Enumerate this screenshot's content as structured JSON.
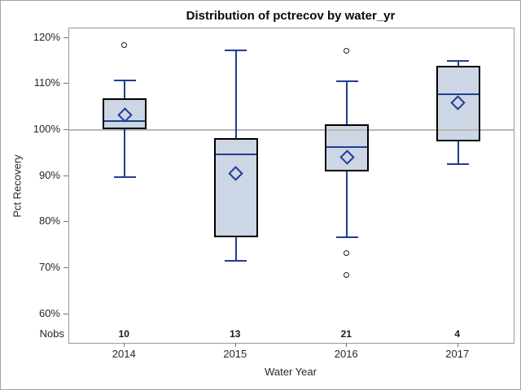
{
  "chart_data": {
    "type": "boxplot",
    "title": "Distribution of pctrecov by water_yr",
    "xlabel": "Water Year",
    "ylabel": "Pct Recovery",
    "categories": [
      "2014",
      "2015",
      "2016",
      "2017"
    ],
    "yticks": [
      120,
      110,
      100,
      90,
      80,
      70,
      60
    ],
    "ytick_labels": [
      "120%",
      "110%",
      "100%",
      "90%",
      "80%",
      "70%",
      "60%"
    ],
    "ylim": [
      57,
      122
    ],
    "grid": "off",
    "legend": "none",
    "reference_line": 100,
    "nobs_label": "Nobs",
    "nobs": [
      "10",
      "13",
      "21",
      "4"
    ],
    "series": [
      {
        "category": "2014",
        "n": 10,
        "whisker_low": 89.8,
        "q1": 100.2,
        "median": 102.0,
        "mean": 103.3,
        "q3": 106.9,
        "whisker_high": 110.7,
        "outliers": [
          118.4
        ]
      },
      {
        "category": "2015",
        "n": 13,
        "whisker_low": 71.5,
        "q1": 76.7,
        "median": 94.7,
        "mean": 90.6,
        "q3": 98.2,
        "whisker_high": 117.2,
        "outliers": []
      },
      {
        "category": "2016",
        "n": 21,
        "whisker_low": 76.6,
        "q1": 91.0,
        "median": 96.2,
        "mean": 94.0,
        "q3": 101.2,
        "whisker_high": 110.6,
        "outliers": [
          117.1,
          73.2,
          68.4
        ]
      },
      {
        "category": "2017",
        "n": 4,
        "whisker_low": 92.5,
        "q1": 97.5,
        "median": 107.7,
        "mean": 105.8,
        "q3": 113.9,
        "whisker_high": 115.0,
        "outliers": []
      }
    ],
    "colors": {
      "box_fill": "#ccd6e4",
      "box_border": "#000000",
      "line_blue": "#1f3d94",
      "outlier_stroke": "#1a1a1a",
      "reference_line": "#b8b8b8",
      "frame": "#999999",
      "text": "#262626",
      "title_text": "#0a0a0a",
      "background": "#ffffff"
    }
  }
}
